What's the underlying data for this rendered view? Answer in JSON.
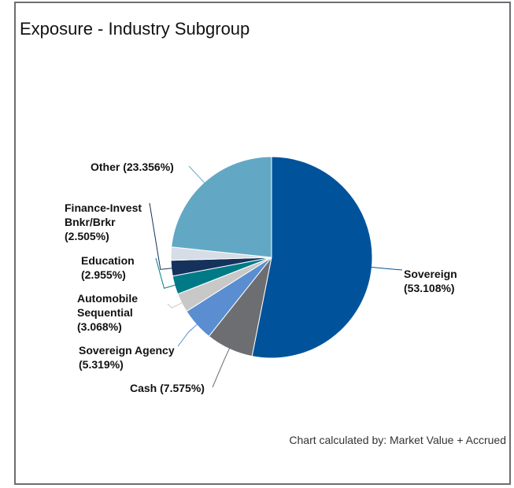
{
  "chart_data": {
    "type": "pie",
    "title": "Exposure - Industry Subgroup",
    "categories": [
      "Sovereign",
      "Cash",
      "Sovereign Agency",
      "Automobile Sequential",
      "Education",
      "Finance-Invest Bnkr/Brkr",
      null,
      "Other"
    ],
    "values": [
      53.108,
      7.575,
      5.319,
      3.068,
      2.955,
      2.505,
      2.114,
      23.356
    ],
    "value_labels": [
      "(53.108%)",
      "(7.575%)",
      "(5.319%)",
      "(3.068%)",
      "(2.955%)",
      "(2.505%)",
      null,
      "(23.356%)"
    ],
    "colors": [
      "#00539b",
      "#6d6e71",
      "#5a8ed0",
      "#c8c8c8",
      "#007a87",
      "#14325c",
      "#d6dde6",
      "#62a8c4"
    ],
    "footnote": "Chart calculated by: Market Value + Accrued"
  }
}
